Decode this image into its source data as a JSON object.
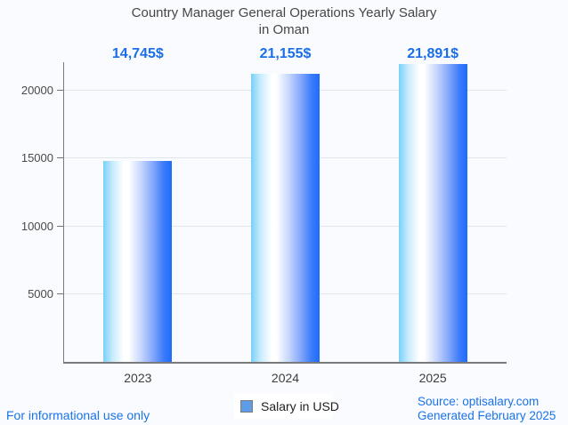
{
  "title": {
    "line1": "Country Manager General Operations Yearly Salary",
    "line2": "in Oman"
  },
  "chart_data": {
    "type": "bar",
    "title": "Country Manager General Operations Yearly Salary in Oman",
    "categories": [
      "2023",
      "2024",
      "2025"
    ],
    "values": [
      14745,
      21155,
      21891
    ],
    "value_labels": [
      "14,745$",
      "21,155$",
      "21,891$"
    ],
    "series_name": "Salary in USD",
    "xlabel": "",
    "ylabel": "",
    "ylim": [
      0,
      22000
    ],
    "yticks": [
      5000,
      10000,
      15000,
      20000
    ],
    "ytick_labels": [
      "5000",
      "10000",
      "15000",
      "20000"
    ],
    "grid": true,
    "legend_position": "bottom"
  },
  "legend": {
    "label": "Salary in USD",
    "swatch_color": "#5f9ce8"
  },
  "footer": {
    "left_note": "For informational use only",
    "source": "Source: optisalary.com",
    "generated": "Generated February 2025"
  },
  "colors": {
    "background": "#fafbfe",
    "title_text": "#464646",
    "value_label": "#1a6ee8",
    "axis": "#7a7a7a",
    "gridline": "#e2e5ea",
    "bar_gradient_left": "#79d0f8",
    "bar_gradient_mid": "#ffffff",
    "bar_gradient_right": "#1d6cfd",
    "footer_link": "#1a73e8"
  }
}
